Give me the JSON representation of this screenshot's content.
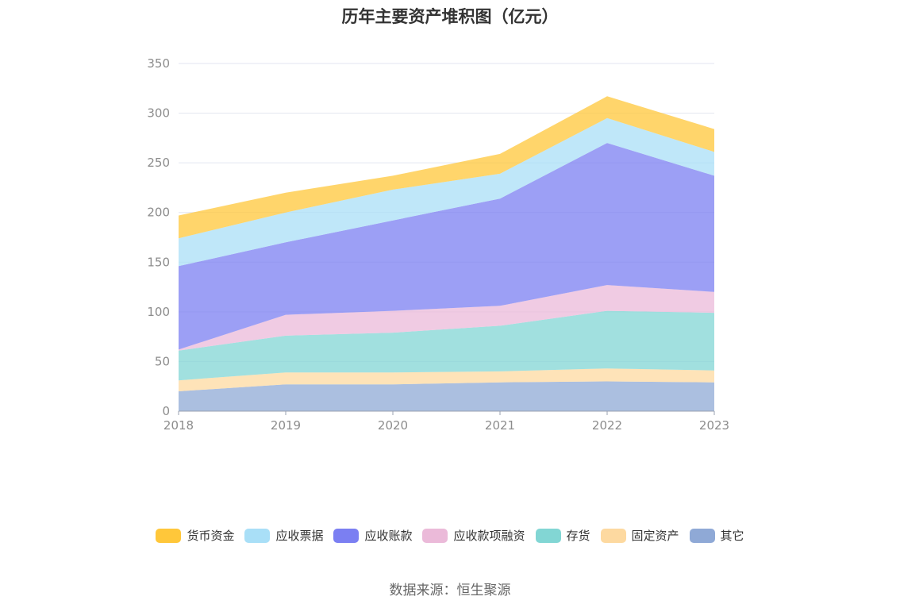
{
  "title": "历年主要资产堆积图（亿元）",
  "source": "数据来源：恒生聚源",
  "chart_data": {
    "type": "area",
    "stacked": true,
    "categories": [
      "2018",
      "2019",
      "2020",
      "2021",
      "2022",
      "2023"
    ],
    "ylim": [
      0,
      350
    ],
    "yticks": [
      0,
      50,
      100,
      150,
      200,
      250,
      300,
      350
    ],
    "grid": true,
    "legend_position": "bottom",
    "series": [
      {
        "name": "其它",
        "color": "#8fa9d6",
        "values": [
          20,
          27,
          27,
          29,
          30,
          29
        ]
      },
      {
        "name": "固定资产",
        "color": "#fdd9a0",
        "values": [
          11,
          12,
          12,
          11,
          13,
          12
        ]
      },
      {
        "name": "存货",
        "color": "#82d6d4",
        "values": [
          30,
          37,
          40,
          46,
          58,
          58
        ]
      },
      {
        "name": "应收款项融资",
        "color": "#ebbad9",
        "values": [
          1,
          21,
          22,
          20,
          26,
          21
        ]
      },
      {
        "name": "应收账款",
        "color": "#7b7ff2",
        "values": [
          84,
          73,
          91,
          108,
          143,
          117
        ]
      },
      {
        "name": "应收票据",
        "color": "#a9dff7",
        "values": [
          28,
          30,
          31,
          25,
          25,
          24
        ]
      },
      {
        "name": "货币资金",
        "color": "#ffc73a",
        "values": [
          23,
          20,
          14,
          20,
          22,
          23
        ]
      }
    ]
  },
  "legend": [
    {
      "label": "货币资金",
      "color": "#ffc73a"
    },
    {
      "label": "应收票据",
      "color": "#a9dff7"
    },
    {
      "label": "应收账款",
      "color": "#7b7ff2"
    },
    {
      "label": "应收款项融资",
      "color": "#ebbad9"
    },
    {
      "label": "存货",
      "color": "#82d6d4"
    },
    {
      "label": "固定资产",
      "color": "#fdd9a0"
    },
    {
      "label": "其它",
      "color": "#8fa9d6"
    }
  ]
}
